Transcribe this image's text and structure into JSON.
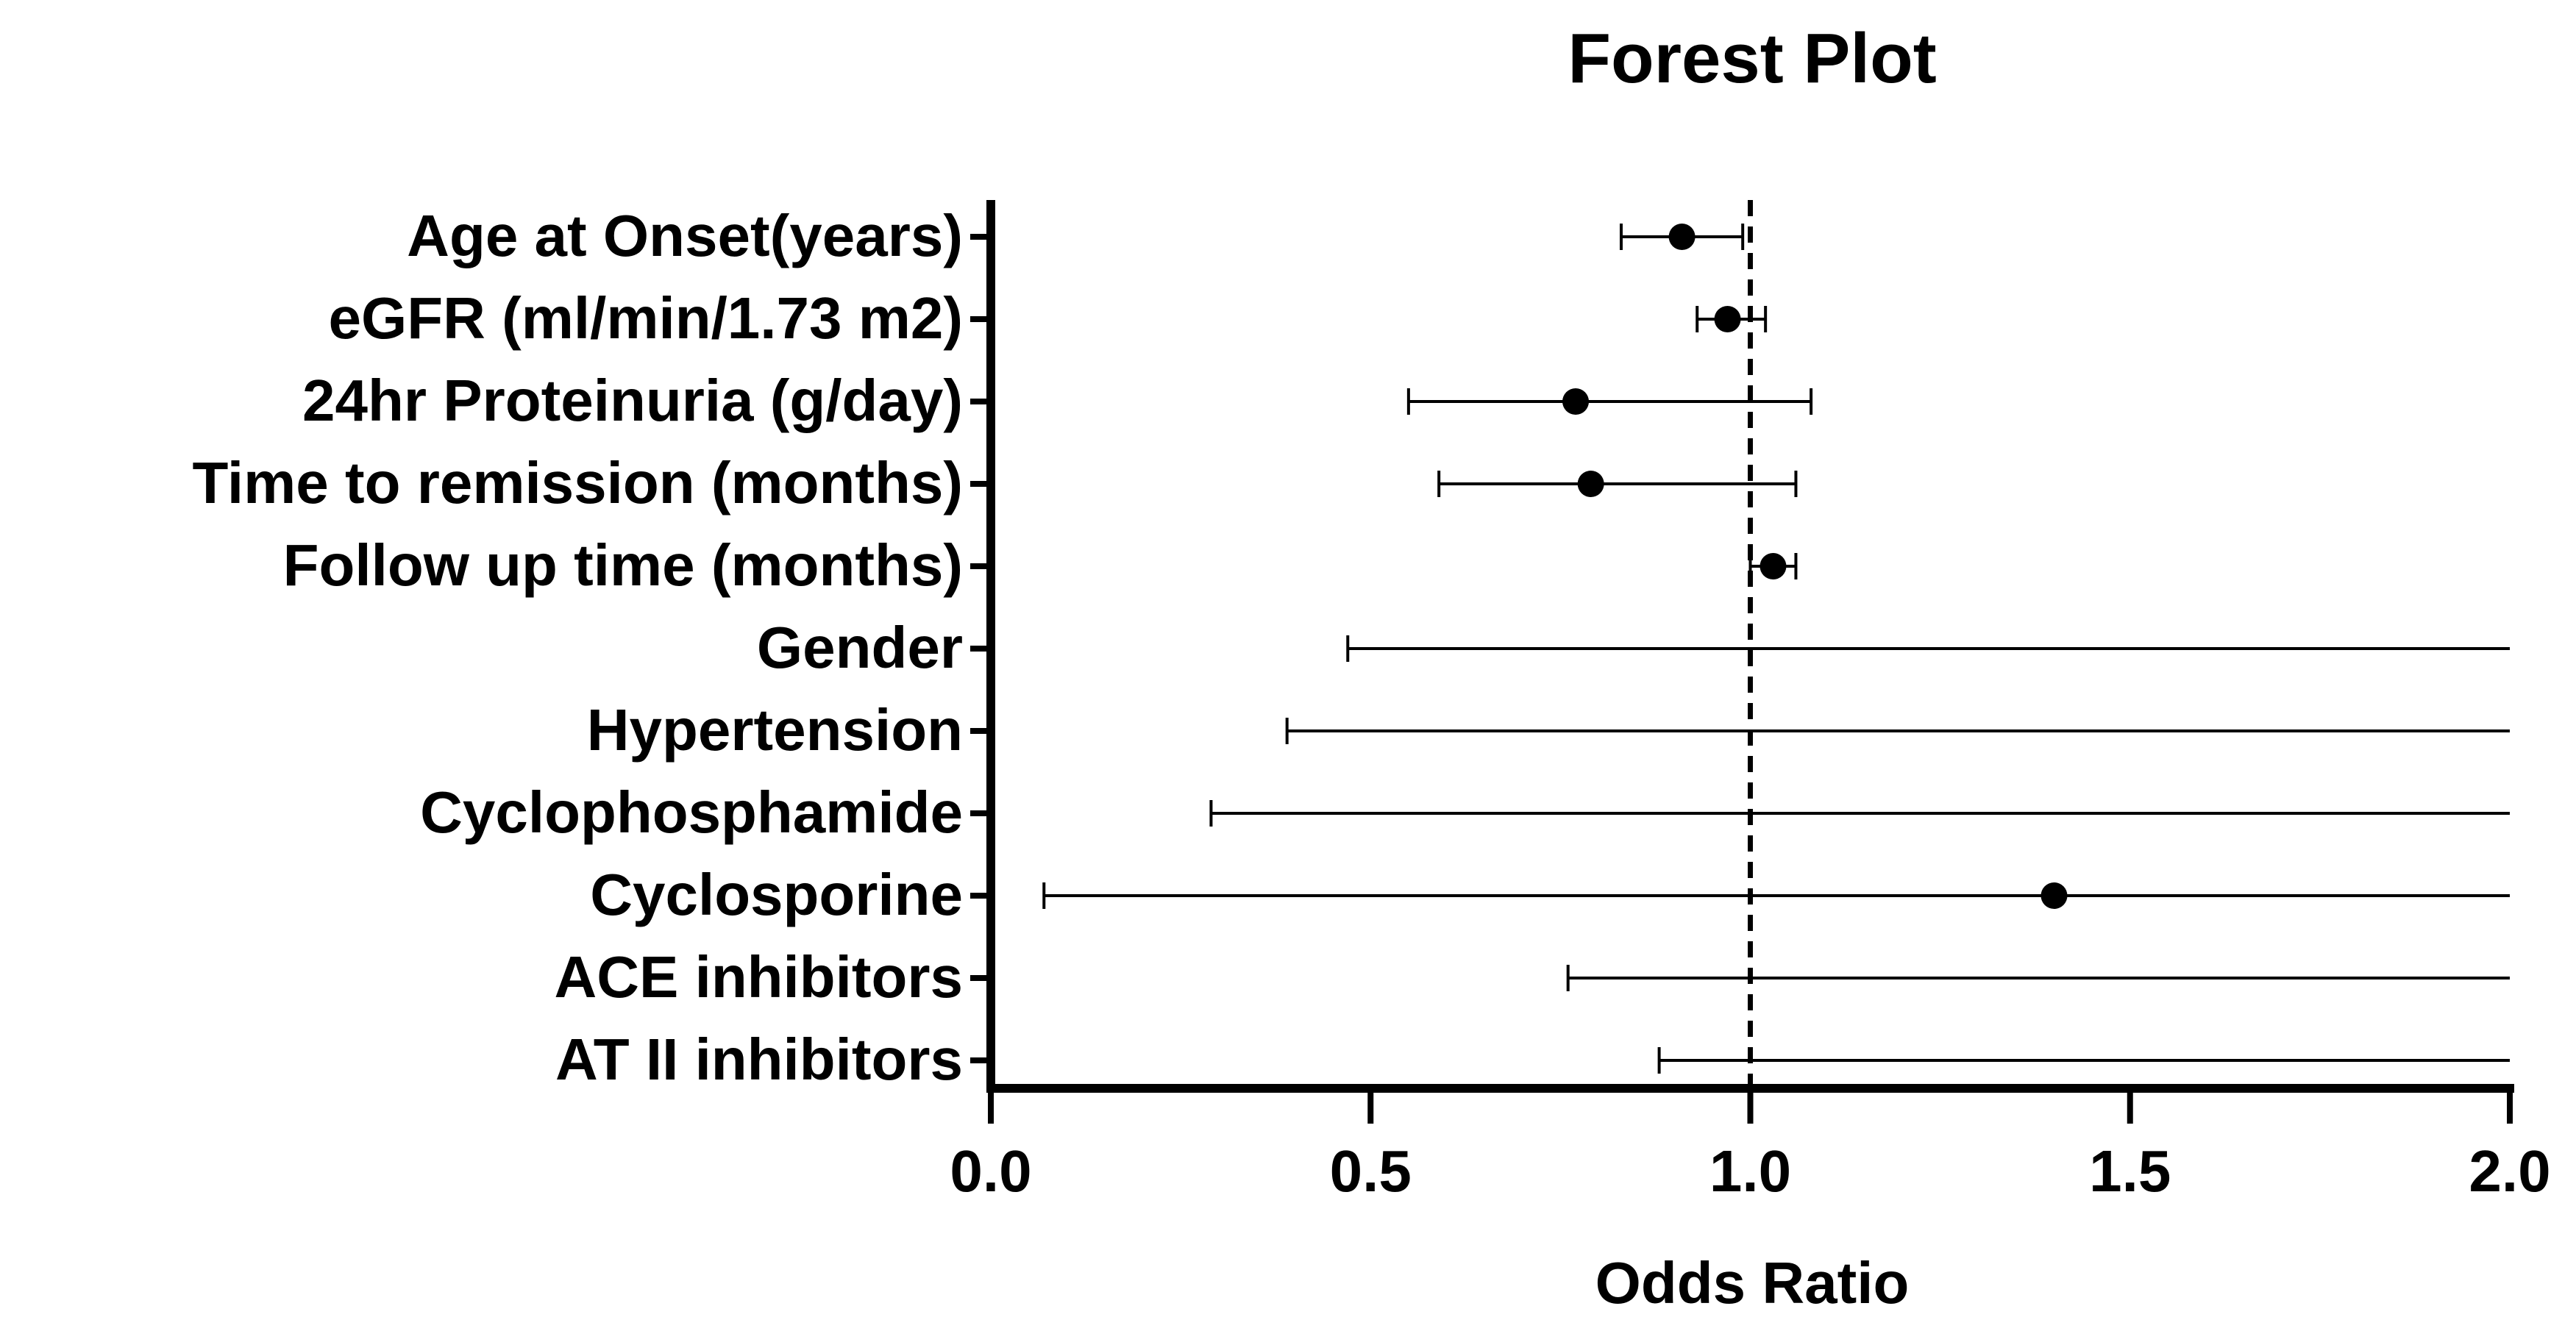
{
  "chart_data": {
    "type": "forest",
    "title": "Forest Plot",
    "xlabel": "Odds Ratio",
    "ylabel": "",
    "xlim": [
      0,
      2
    ],
    "x_ticks": [
      0.0,
      0.5,
      1.0,
      1.5,
      2.0
    ],
    "x_tick_labels": [
      "0.0",
      "0.5",
      "1.0",
      "1.5",
      "2.0"
    ],
    "reference_line": 1.0,
    "grid": false,
    "rows": [
      {
        "label": "Age at Onset(years)",
        "estimate": 0.91,
        "lower": 0.83,
        "upper": 0.99,
        "upper_cap": true
      },
      {
        "label": "eGFR (ml/min/1.73 m2)",
        "estimate": 0.97,
        "lower": 0.93,
        "upper": 1.02,
        "upper_cap": true
      },
      {
        "label": "24hr Proteinuria (g/day)",
        "estimate": 0.77,
        "lower": 0.55,
        "upper": 1.08,
        "upper_cap": true
      },
      {
        "label": "Time to remission (months)",
        "estimate": 0.79,
        "lower": 0.59,
        "upper": 1.06,
        "upper_cap": true
      },
      {
        "label": "Follow up time (months)",
        "estimate": 1.03,
        "lower": 1.0,
        "upper": 1.06,
        "upper_cap": true
      },
      {
        "label": "Gender",
        "estimate": null,
        "lower": 0.47,
        "upper": 2.0,
        "upper_cap": false
      },
      {
        "label": "Hypertension",
        "estimate": null,
        "lower": 0.39,
        "upper": 2.0,
        "upper_cap": false
      },
      {
        "label": "Cyclophosphamide",
        "estimate": null,
        "lower": 0.29,
        "upper": 2.0,
        "upper_cap": false
      },
      {
        "label": "Cyclosporine",
        "estimate": 1.4,
        "lower": 0.07,
        "upper": 2.0,
        "upper_cap": false
      },
      {
        "label": "ACE inhibitors",
        "estimate": null,
        "lower": 0.76,
        "upper": 2.0,
        "upper_cap": false
      },
      {
        "label": "AT II inhibitors",
        "estimate": null,
        "lower": 0.88,
        "upper": 2.0,
        "upper_cap": false
      }
    ]
  }
}
